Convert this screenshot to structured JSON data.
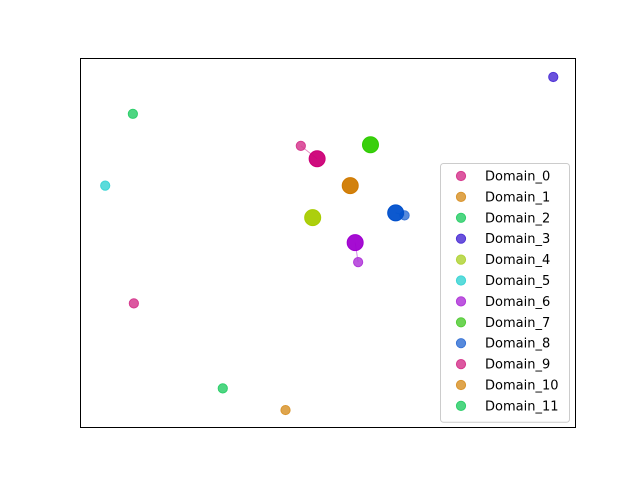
{
  "chart_data": {
    "type": "scatter",
    "title": "",
    "xlabel": "",
    "ylabel": "",
    "xlim": [
      0,
      100
    ],
    "ylim": [
      0,
      100
    ],
    "grid": false,
    "axis_ticks": false,
    "legend": {
      "placement": "right"
    },
    "series": [
      {
        "name": "Domain_0",
        "color": "#d63b8f",
        "points": [
          [
            44.5,
            76.4
          ]
        ]
      },
      {
        "name": "Domain_1",
        "color": "#d9952e",
        "points": [
          [
            41.4,
            4.6
          ]
        ]
      },
      {
        "name": "Domain_2",
        "color": "#2fcf6c",
        "points": [
          [
            10.5,
            85.1
          ]
        ]
      },
      {
        "name": "Domain_3",
        "color": "#5034d6",
        "points": [
          [
            95.6,
            95.1
          ]
        ]
      },
      {
        "name": "Domain_4",
        "color": "#b2d43a",
        "points": []
      },
      {
        "name": "Domain_5",
        "color": "#3ed5d5",
        "points": [
          [
            4.9,
            65.6
          ]
        ]
      },
      {
        "name": "Domain_6",
        "color": "#b13ad9",
        "points": [
          [
            56.1,
            44.8
          ]
        ]
      },
      {
        "name": "Domain_7",
        "color": "#55cc37",
        "points": []
      },
      {
        "name": "Domain_8",
        "color": "#3a75d6",
        "points": [
          [
            65.5,
            57.5
          ]
        ]
      },
      {
        "name": "Domain_9",
        "color": "#d63b8f",
        "points": [
          [
            10.7,
            33.6
          ]
        ]
      },
      {
        "name": "Domain_10",
        "color": "#d9952e",
        "points": []
      },
      {
        "name": "Domain_11",
        "color": "#2fcf6c",
        "points": [
          [
            28.7,
            10.5
          ]
        ]
      }
    ],
    "centroids": [
      {
        "color": "#cc0077",
        "x": 47.8,
        "y": 72.9,
        "member": [
          44.5,
          76.4
        ]
      },
      {
        "color": "#d07a00",
        "x": 54.5,
        "y": 65.6
      },
      {
        "color": "#2ecc00",
        "x": 58.6,
        "y": 76.7
      },
      {
        "color": "#a8cc00",
        "x": 46.9,
        "y": 56.9
      },
      {
        "color": "#a000d0",
        "x": 55.5,
        "y": 50.1,
        "member": [
          56.1,
          44.8
        ]
      },
      {
        "color": "#0050cc",
        "x": 63.7,
        "y": 58.2,
        "member": [
          65.5,
          57.5
        ]
      }
    ]
  }
}
